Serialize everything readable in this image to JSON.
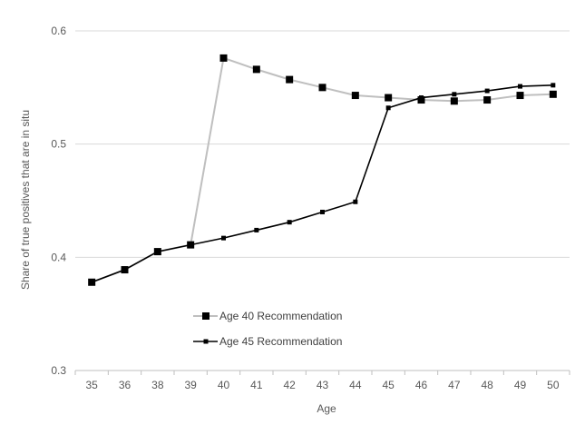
{
  "chart_data": {
    "type": "line",
    "xlabel": "Age",
    "ylabel": "Share of true positives that are in situ",
    "categories": [
      "35",
      "36",
      "38",
      "39",
      "40",
      "41",
      "42",
      "43",
      "44",
      "45",
      "46",
      "47",
      "48",
      "49",
      "50"
    ],
    "ylim": [
      0.3,
      0.6
    ],
    "yticks": [
      "0.3",
      "0.4",
      "0.5",
      "0.6"
    ],
    "grid": "horizontal",
    "legend_position": "lower-left",
    "series": [
      {
        "name": "Age 40 Recommendation",
        "color": "#bfbfbf",
        "marker": "large-square",
        "values": [
          0.378,
          0.389,
          0.405,
          0.411,
          0.576,
          0.566,
          0.557,
          0.55,
          0.543,
          0.541,
          0.539,
          0.538,
          0.539,
          0.543,
          0.544
        ]
      },
      {
        "name": "Age 45 Recommendation",
        "color": "#000000",
        "marker": "small-square",
        "values": [
          0.378,
          0.389,
          0.405,
          0.411,
          0.417,
          0.424,
          0.431,
          0.44,
          0.449,
          0.532,
          0.541,
          0.544,
          0.547,
          0.551,
          0.552
        ]
      }
    ]
  }
}
